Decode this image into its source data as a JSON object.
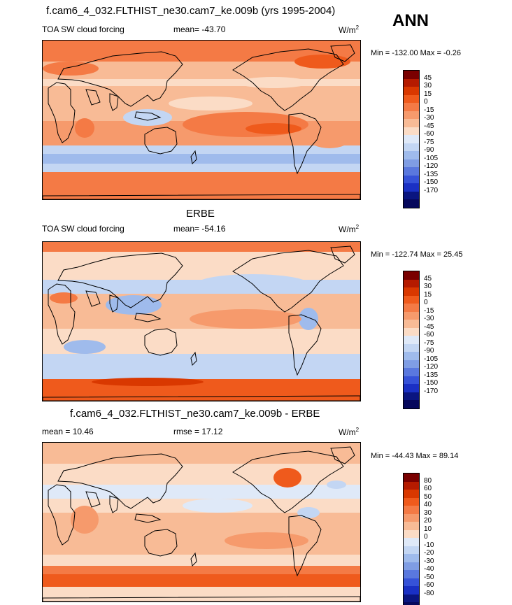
{
  "season": "ANN",
  "panels": [
    {
      "title": "f.cam6_4_032.FLTHIST_ne30.cam7_ke.009b (yrs 1995-2004)",
      "left_label": "TOA SW cloud forcing",
      "center_label": "mean= -43.70",
      "units": "W/m",
      "units_exp": "2",
      "stats": "Min = -132.00 Max =  -0.26",
      "colorbar": [
        "45",
        "30",
        "15",
        "0",
        "-15",
        "-30",
        "-45",
        "-60",
        "-75",
        "-90",
        "-105",
        "-120",
        "-135",
        "-150",
        "-170"
      ]
    },
    {
      "title": "ERBE",
      "left_label": "TOA SW cloud forcing",
      "center_label": "mean= -54.16",
      "units": "W/m",
      "units_exp": "2",
      "stats": "Min = -122.74 Max =  25.45",
      "colorbar": [
        "45",
        "30",
        "15",
        "0",
        "-15",
        "-30",
        "-45",
        "-60",
        "-75",
        "-90",
        "-105",
        "-120",
        "-135",
        "-150",
        "-170"
      ]
    },
    {
      "title": "f.cam6_4_032.FLTHIST_ne30.cam7_ke.009b - ERBE",
      "left_label": "mean =  10.46",
      "center_label": "rmse =  17.12",
      "units": "W/m",
      "units_exp": "2",
      "stats": "Min = -44.43 Max =  89.14",
      "colorbar": [
        "80",
        "60",
        "50",
        "40",
        "30",
        "20",
        "10",
        "0",
        "-10",
        "-20",
        "-30",
        "-40",
        "-50",
        "-60",
        "-80"
      ]
    }
  ],
  "colors": {
    "scale": [
      "#7a0000",
      "#b51b00",
      "#d93800",
      "#ef5a1c",
      "#f47a45",
      "#f69a6c",
      "#f8bb96",
      "#fbdcc6",
      "#dfe9f8",
      "#c3d6f3",
      "#9fbbec",
      "#7f9de4",
      "#5a78de",
      "#3652d8",
      "#1a30c4",
      "#0a1580",
      "#06085c"
    ],
    "coast": "#000000"
  }
}
